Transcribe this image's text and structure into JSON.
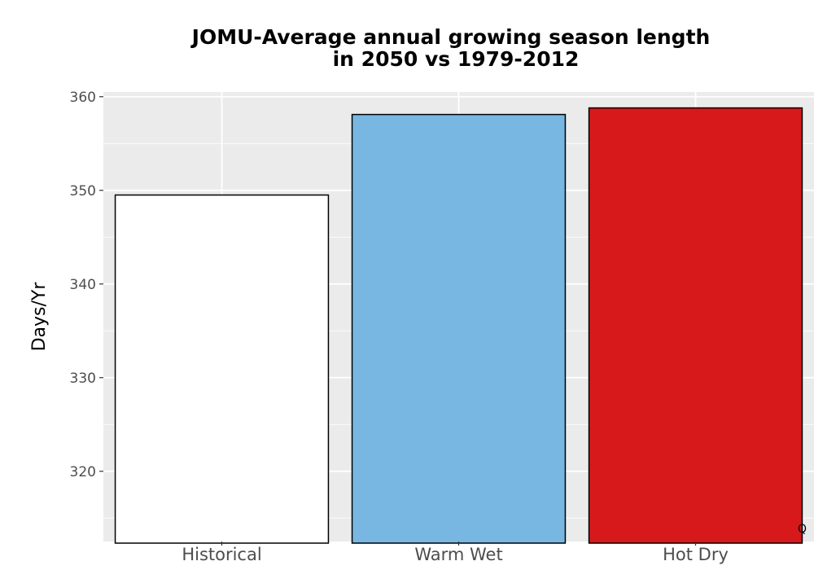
{
  "chart_data": {
    "type": "bar",
    "title_lines": [
      "JOMU-Average annual growing season length",
      "in 2050 vs 1979-2012"
    ],
    "xlabel": "",
    "ylabel": "Days/Yr",
    "categories": [
      "Historical",
      "Warm Wet",
      "Hot Dry"
    ],
    "values": [
      349.5,
      358.1,
      358.8
    ],
    "bar_colors": [
      "#ffffff",
      "#78b7e1",
      "#d7191c"
    ],
    "bar_outline": "#000000",
    "ylim": [
      312.5,
      360.5
    ],
    "yticks": [
      320,
      330,
      340,
      350,
      360
    ],
    "grid": true,
    "panel_background": "#ebebeb",
    "corner_note": "Q"
  }
}
